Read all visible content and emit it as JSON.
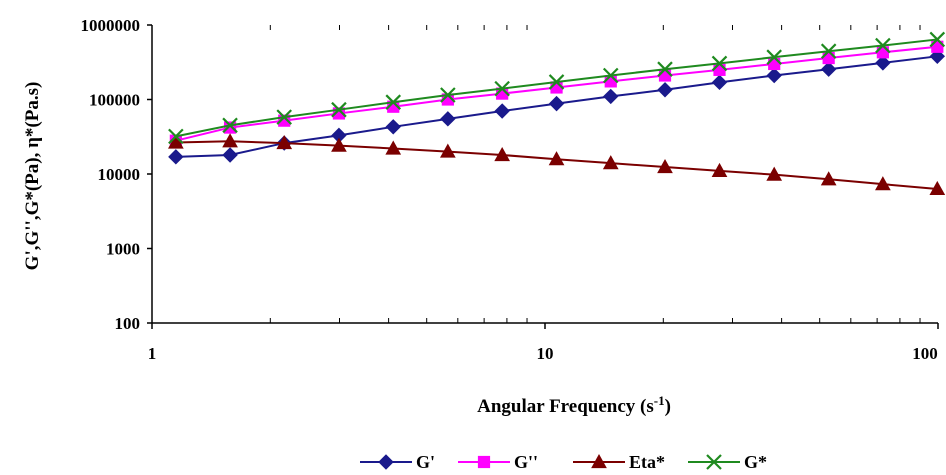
{
  "chart_data": {
    "type": "line",
    "xscale": "log",
    "yscale": "log",
    "xlim": [
      1,
      100
    ],
    "ylim": [
      100,
      1000000
    ],
    "xticks": [
      "1",
      "10",
      "100"
    ],
    "yticks": [
      "100",
      "1000",
      "10000",
      "100000",
      "1000000"
    ],
    "xlabel_main": "Angular Frequency (s",
    "xlabel_sup": "-1",
    "xlabel_end": ")",
    "ylabel": "G',G'',G*(Pa), η*(Pa.s)",
    "grid": "minor vertical tick marks only",
    "legend_position": "bottom",
    "x": [
      1.15,
      1.58,
      2.17,
      2.99,
      4.11,
      5.66,
      7.78,
      10.7,
      14.7,
      20.2,
      27.8,
      38.3,
      52.7,
      72.4,
      99.6
    ],
    "series": [
      {
        "name": "G'",
        "color": "#1a1a8c",
        "marker": "diamond",
        "values": [
          17000,
          18000,
          26000,
          33000,
          43000,
          55000,
          70000,
          88000,
          110000,
          135000,
          170000,
          210000,
          255000,
          310000,
          380000
        ]
      },
      {
        "name": "G''",
        "color": "#ff00ff",
        "marker": "square",
        "values": [
          28000,
          42000,
          52000,
          65000,
          80000,
          100000,
          120000,
          145000,
          175000,
          210000,
          250000,
          300000,
          360000,
          430000,
          510000
        ]
      },
      {
        "name": "Eta*",
        "color": "#7b0000",
        "marker": "triangle",
        "values": [
          26500,
          27500,
          26000,
          24000,
          22000,
          20000,
          18000,
          15800,
          14000,
          12400,
          11000,
          9800,
          8500,
          7300,
          6300
        ]
      },
      {
        "name": "G*",
        "color": "#1f8a1f",
        "marker": "x",
        "values": [
          32000,
          45000,
          58000,
          73000,
          92000,
          115000,
          140000,
          172000,
          210000,
          255000,
          305000,
          370000,
          445000,
          530000,
          640000
        ]
      }
    ]
  }
}
